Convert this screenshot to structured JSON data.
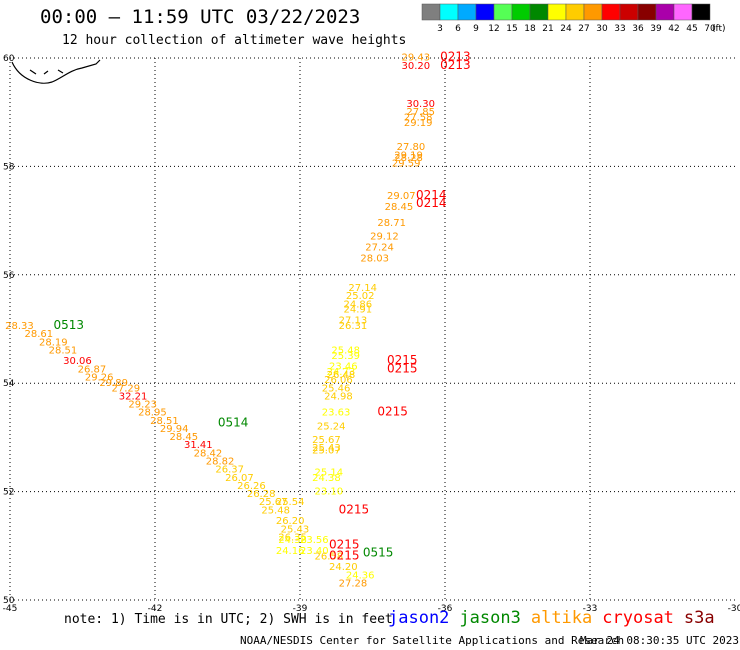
{
  "header": {
    "title": "00:00 – 11:59 UTC 03/22/2023",
    "subtitle": "12 hour collection of altimeter wave heights"
  },
  "colorbar": {
    "unit": "(ft)",
    "bins": [
      {
        "label": "3",
        "color": "#7f7f7f"
      },
      {
        "label": "6",
        "color": "#00ffff"
      },
      {
        "label": "9",
        "color": "#00aaff"
      },
      {
        "label": "12",
        "color": "#0000ff"
      },
      {
        "label": "15",
        "color": "#55ff55"
      },
      {
        "label": "18",
        "color": "#00cc00"
      },
      {
        "label": "21",
        "color": "#008800"
      },
      {
        "label": "24",
        "color": "#ffff00"
      },
      {
        "label": "27",
        "color": "#ffcc00"
      },
      {
        "label": "30",
        "color": "#ff9900"
      },
      {
        "label": "33",
        "color": "#ff0000"
      },
      {
        "label": "36",
        "color": "#cc0000"
      },
      {
        "label": "39",
        "color": "#880000"
      },
      {
        "label": "42",
        "color": "#aa00aa"
      },
      {
        "label": "45",
        "color": "#ff66ff"
      },
      {
        "label": "70",
        "color": "#000000"
      }
    ]
  },
  "footer": {
    "note": "note: 1) Time is in UTC; 2) SWH is in feet",
    "credit": "NOAA/NESDIS Center for Satellite Applications and Research",
    "stamp": "Mar 24 08:30:35 UTC 2023",
    "satellites": [
      {
        "name": "jason2",
        "color": "#0000ff"
      },
      {
        "name": "jason3",
        "color": "#008800"
      },
      {
        "name": "altika",
        "color": "#ff9900"
      },
      {
        "name": "cryosat",
        "color": "#ff0000"
      },
      {
        "name": "s3a",
        "color": "#880000"
      }
    ]
  },
  "chart_data": {
    "type": "scatter",
    "title": "00:00 – 11:59 UTC 03/22/2023",
    "xlim": [
      -45,
      -30
    ],
    "ylim": [
      50,
      60
    ],
    "xticks": [
      "-45",
      "-42",
      "-39",
      "-36",
      "-33",
      "-30"
    ],
    "yticks": [
      "50",
      "52",
      "54",
      "56",
      "58",
      "60"
    ],
    "grid": true,
    "coastline": "top-left",
    "points": [
      {
        "lon": -36.9,
        "lat": 59.95,
        "text": "29.43",
        "color": "#ff9900"
      },
      {
        "lon": -36.9,
        "lat": 59.8,
        "text": "30.20",
        "color": "#ff0000"
      },
      {
        "lon": -36.8,
        "lat": 59.1,
        "text": "30.30",
        "color": "#ff0000"
      },
      {
        "lon": -36.8,
        "lat": 58.95,
        "text": "27.85",
        "color": "#ff9900"
      },
      {
        "lon": -36.85,
        "lat": 58.85,
        "text": "27.58",
        "color": "#ff9900"
      },
      {
        "lon": -36.85,
        "lat": 58.75,
        "text": "29.19",
        "color": "#ff9900"
      },
      {
        "lon": -37.0,
        "lat": 58.3,
        "text": "27.80",
        "color": "#ff9900"
      },
      {
        "lon": -37.05,
        "lat": 58.15,
        "text": "29.19",
        "color": "#ff9900"
      },
      {
        "lon": -37.05,
        "lat": 58.1,
        "text": "28.28",
        "color": "#ff9900"
      },
      {
        "lon": -37.1,
        "lat": 58.0,
        "text": "29.59",
        "color": "#ff9900"
      },
      {
        "lon": -37.2,
        "lat": 57.4,
        "text": "29.07",
        "color": "#ff9900"
      },
      {
        "lon": -37.25,
        "lat": 57.2,
        "text": "28.45",
        "color": "#ff9900"
      },
      {
        "lon": -37.4,
        "lat": 56.9,
        "text": "28.71",
        "color": "#ff9900"
      },
      {
        "lon": -37.55,
        "lat": 56.65,
        "text": "29.12",
        "color": "#ff9900"
      },
      {
        "lon": -37.65,
        "lat": 56.45,
        "text": "27.24",
        "color": "#ff9900"
      },
      {
        "lon": -37.75,
        "lat": 56.25,
        "text": "28.03",
        "color": "#ff9900"
      },
      {
        "lon": -38.0,
        "lat": 55.7,
        "text": "27.14",
        "color": "#ffcc00"
      },
      {
        "lon": -38.05,
        "lat": 55.55,
        "text": "25.02",
        "color": "#ffcc00"
      },
      {
        "lon": -38.1,
        "lat": 55.4,
        "text": "24.86",
        "color": "#ffcc00"
      },
      {
        "lon": -38.1,
        "lat": 55.3,
        "text": "24.91",
        "color": "#ffcc00"
      },
      {
        "lon": -38.2,
        "lat": 55.1,
        "text": "27.13",
        "color": "#ffcc00"
      },
      {
        "lon": -38.2,
        "lat": 55.0,
        "text": "26.31",
        "color": "#ffcc00"
      },
      {
        "lon": -38.35,
        "lat": 54.55,
        "text": "25.48",
        "color": "#ffff00"
      },
      {
        "lon": -38.35,
        "lat": 54.45,
        "text": "25.39",
        "color": "#ffff00"
      },
      {
        "lon": -38.4,
        "lat": 54.25,
        "text": "23.46",
        "color": "#ffff00"
      },
      {
        "lon": -38.45,
        "lat": 54.15,
        "text": "24.73",
        "color": "#ffff00"
      },
      {
        "lon": -38.45,
        "lat": 54.1,
        "text": "26.48",
        "color": "#ffcc00"
      },
      {
        "lon": -38.5,
        "lat": 54.0,
        "text": "26.06",
        "color": "#ffcc00"
      },
      {
        "lon": -38.55,
        "lat": 53.85,
        "text": "25.46",
        "color": "#ffcc00"
      },
      {
        "lon": -38.5,
        "lat": 53.7,
        "text": "24.98",
        "color": "#ffcc00"
      },
      {
        "lon": -38.55,
        "lat": 53.4,
        "text": "23.63",
        "color": "#ffff00"
      },
      {
        "lon": -38.65,
        "lat": 53.15,
        "text": "25.24",
        "color": "#ffcc00"
      },
      {
        "lon": -38.75,
        "lat": 52.9,
        "text": "25.67",
        "color": "#ffcc00"
      },
      {
        "lon": -38.75,
        "lat": 52.75,
        "text": "25.43",
        "color": "#ffcc00"
      },
      {
        "lon": -38.75,
        "lat": 52.7,
        "text": "25.07",
        "color": "#ffcc00"
      },
      {
        "lon": -38.7,
        "lat": 52.3,
        "text": "25.14",
        "color": "#ffff00"
      },
      {
        "lon": -38.75,
        "lat": 52.2,
        "text": "24.38",
        "color": "#ffff00"
      },
      {
        "lon": -38.7,
        "lat": 51.95,
        "text": "23.10",
        "color": "#ffff00"
      },
      {
        "lon": -45.1,
        "lat": 55.0,
        "text": "28.33",
        "color": "#ff9900"
      },
      {
        "lon": -44.7,
        "lat": 54.85,
        "text": "28.61",
        "color": "#ff9900"
      },
      {
        "lon": -44.4,
        "lat": 54.7,
        "text": "28.19",
        "color": "#ff9900"
      },
      {
        "lon": -44.2,
        "lat": 54.55,
        "text": "28.51",
        "color": "#ff9900"
      },
      {
        "lon": -43.9,
        "lat": 54.35,
        "text": "30.06",
        "color": "#ff0000"
      },
      {
        "lon": -43.6,
        "lat": 54.2,
        "text": "26.87",
        "color": "#ff9900"
      },
      {
        "lon": -43.45,
        "lat": 54.05,
        "text": "29.26",
        "color": "#ff9900"
      },
      {
        "lon": -43.15,
        "lat": 53.95,
        "text": "29.89",
        "color": "#ff9900"
      },
      {
        "lon": -42.9,
        "lat": 53.85,
        "text": "27.29",
        "color": "#ff9900"
      },
      {
        "lon": -42.75,
        "lat": 53.7,
        "text": "32.21",
        "color": "#ff0000"
      },
      {
        "lon": -42.55,
        "lat": 53.55,
        "text": "29.23",
        "color": "#ff9900"
      },
      {
        "lon": -42.35,
        "lat": 53.4,
        "text": "28.95",
        "color": "#ff9900"
      },
      {
        "lon": -42.1,
        "lat": 53.25,
        "text": "28.51",
        "color": "#ff9900"
      },
      {
        "lon": -41.9,
        "lat": 53.1,
        "text": "29.94",
        "color": "#ff9900"
      },
      {
        "lon": -41.7,
        "lat": 52.95,
        "text": "28.45",
        "color": "#ff9900"
      },
      {
        "lon": -41.4,
        "lat": 52.8,
        "text": "31.41",
        "color": "#ff0000"
      },
      {
        "lon": -41.2,
        "lat": 52.65,
        "text": "28.42",
        "color": "#ff9900"
      },
      {
        "lon": -40.95,
        "lat": 52.5,
        "text": "28.82",
        "color": "#ff9900"
      },
      {
        "lon": -40.75,
        "lat": 52.35,
        "text": "26.37",
        "color": "#ffcc00"
      },
      {
        "lon": -40.55,
        "lat": 52.2,
        "text": "26.07",
        "color": "#ffcc00"
      },
      {
        "lon": -40.3,
        "lat": 52.05,
        "text": "26.26",
        "color": "#ffcc00"
      },
      {
        "lon": -40.1,
        "lat": 51.9,
        "text": "26.28",
        "color": "#ffcc00"
      },
      {
        "lon": -39.85,
        "lat": 51.75,
        "text": "25.67",
        "color": "#ffcc00"
      },
      {
        "lon": -39.5,
        "lat": 51.75,
        "text": "25.54",
        "color": "#ffcc00"
      },
      {
        "lon": -39.8,
        "lat": 51.6,
        "text": "25.48",
        "color": "#ffcc00"
      },
      {
        "lon": -39.5,
        "lat": 51.4,
        "text": "26.20",
        "color": "#ffcc00"
      },
      {
        "lon": -39.4,
        "lat": 51.25,
        "text": "25.43",
        "color": "#ffcc00"
      },
      {
        "lon": -39.45,
        "lat": 51.1,
        "text": "26.35",
        "color": "#ffcc00"
      },
      {
        "lon": -39.45,
        "lat": 51.05,
        "text": "24.38",
        "color": "#ffff00"
      },
      {
        "lon": -39.0,
        "lat": 51.05,
        "text": "23.56",
        "color": "#ffff00"
      },
      {
        "lon": -39.5,
        "lat": 50.85,
        "text": "24.16",
        "color": "#ffff00"
      },
      {
        "lon": -39.0,
        "lat": 50.85,
        "text": "23.40",
        "color": "#ffff00"
      },
      {
        "lon": -38.7,
        "lat": 50.75,
        "text": "26.58",
        "color": "#ffcc00"
      },
      {
        "lon": -38.4,
        "lat": 50.55,
        "text": "24.20",
        "color": "#ffcc00"
      },
      {
        "lon": -38.05,
        "lat": 50.4,
        "text": "24.36",
        "color": "#ffff00"
      },
      {
        "lon": -38.2,
        "lat": 50.25,
        "text": "27.28",
        "color": "#ff9900"
      }
    ],
    "passes": [
      {
        "lon": -36.1,
        "lat": 59.95,
        "text": "0213",
        "color": "#ff0000"
      },
      {
        "lon": -36.1,
        "lat": 59.8,
        "text": "0213",
        "color": "#ff0000"
      },
      {
        "lon": -36.6,
        "lat": 57.4,
        "text": "0214",
        "color": "#ff0000"
      },
      {
        "lon": -36.6,
        "lat": 57.25,
        "text": "0214",
        "color": "#ff0000"
      },
      {
        "lon": -37.2,
        "lat": 54.35,
        "text": "0215",
        "color": "#ff0000"
      },
      {
        "lon": -37.2,
        "lat": 54.2,
        "text": "0215",
        "color": "#ff0000"
      },
      {
        "lon": -37.4,
        "lat": 53.4,
        "text": "0215",
        "color": "#ff0000"
      },
      {
        "lon": -38.2,
        "lat": 51.6,
        "text": "0215",
        "color": "#ff0000"
      },
      {
        "lon": -38.4,
        "lat": 50.95,
        "text": "0215",
        "color": "#ff0000"
      },
      {
        "lon": -38.4,
        "lat": 50.75,
        "text": "0215",
        "color": "#ff0000"
      },
      {
        "lon": -44.1,
        "lat": 55.0,
        "text": "0513",
        "color": "#008800"
      },
      {
        "lon": -40.7,
        "lat": 53.2,
        "text": "0514",
        "color": "#008800"
      },
      {
        "lon": -37.7,
        "lat": 50.8,
        "text": "0515",
        "color": "#008800"
      }
    ]
  }
}
